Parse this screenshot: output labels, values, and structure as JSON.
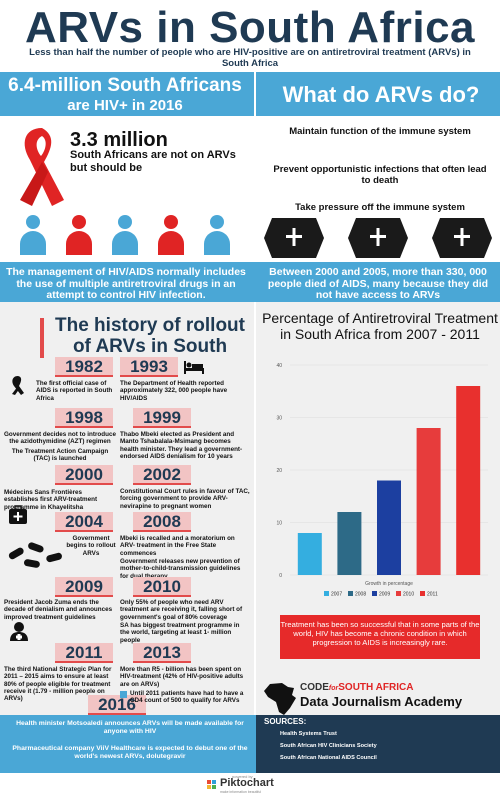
{
  "header": {
    "title": "ARVs in South Africa",
    "subtitle": "Less than half the number of people who are HIV-positive are on antiretroviral treatment (ARVs) in South Africa"
  },
  "banner": {
    "left_line1": "6.4-million South Africans",
    "left_line2": "are HIV+ in 2016",
    "right": "What do ARVs do?"
  },
  "stat": {
    "big": "3.3 million",
    "sub": "South Africans are not on ARVs but should be"
  },
  "arv_does": [
    "Maintain function of the immune system",
    "Prevent opportunistic infections that often lead to death",
    "Take pressure off the immune system"
  ],
  "banner2": {
    "left": "The management of HIV/AIDS normally includes the use of multiple antiretroviral drugs in an attempt to control HIV infection.",
    "right": "Between 2000 and 2005, more than 330, 000 people died of AIDS, many because they did not have access to ARVs"
  },
  "history": {
    "title": "The history of rollout of ARVs in South Africa",
    "entries": [
      {
        "year": "1982",
        "text": "The first official case of AIDS is reported in South Africa"
      },
      {
        "year": "1993",
        "text": "The Department of Health reported approximately 322, 000 people have HIV/AIDS"
      },
      {
        "year": "1998",
        "text": "Government decides not to introduce the azidothymidine (AZT) regimen"
      },
      {
        "year": "1998b",
        "text": "The Treatment Action Campaign (TAC) is launched"
      },
      {
        "year": "1999",
        "text": "Thabo Mbeki elected as President and Manto Tshabalala-Msimang becomes health minister. They lead a government-endorsed AIDS denialism for 10 years"
      },
      {
        "year": "2000",
        "text": "Médecins Sans Frontières establishes first ARV-treatment programme in Khayelitsha"
      },
      {
        "year": "2002",
        "text": "Constitutional Court rules in favour of TAC, forcing government to provide ARV-nevirapine to pregnant women"
      },
      {
        "year": "2004",
        "text": "Government begins to rollout ARVs"
      },
      {
        "year": "2008",
        "text": "Mbeki is recalled and a moratorium on ARV- treatment in the Free State commences"
      },
      {
        "year": "2008b",
        "text": "Government releases new prevention of mother-to-child-transmission guidelines for dual therapy"
      },
      {
        "year": "2009",
        "text": "President Jacob Zuma ends the decade of denialism and announces improved treatment guidelines"
      },
      {
        "year": "2010",
        "text": "Only 55% of people who need ARV treatment are receiving it, falling short of government's goal of 80% coverage"
      },
      {
        "year": "2010b",
        "text": "SA has biggest treatment programme in the world, targeting at least 1- million people"
      },
      {
        "year": "2011",
        "text": "The third National Strategic Plan for 2011 – 2015 aims to ensure at least 80% of people eligible for treatment receive it (1.79 - million people on ARVs)"
      },
      {
        "year": "2013",
        "text": "More than R5 - billion  has been spent on HIV-treatment (42% of HIV-positive adults are on ARVs)"
      },
      {
        "year": "2016",
        "text": "Until 2011 patients have had to have a CD4 count of 500 to qualify for ARVs"
      }
    ],
    "year_labels": [
      "1982",
      "1993",
      "1998",
      "1999",
      "2000",
      "2002",
      "2004",
      "2008",
      "2009",
      "2010",
      "2011",
      "2013",
      "2016"
    ]
  },
  "chart_data": {
    "type": "bar",
    "title": "Percentage of Antiretroviral Treatment in South Africa from 2007 - 2011",
    "xlabel": "Growth in percentage",
    "ylabel": "",
    "categories": [
      "2007",
      "2008",
      "2009",
      "2010",
      "2011"
    ],
    "values": [
      8,
      12,
      18,
      28,
      36
    ],
    "ylim": [
      0,
      40
    ],
    "yticks": [
      "0",
      "10",
      "20",
      "30",
      "40"
    ],
    "colors": [
      "#34aee0",
      "#2d6a87",
      "#1c3fa0",
      "#e73c3c",
      "#e8302e"
    ],
    "legend_position": "bottom"
  },
  "callout": "Treatment has been so successful that in some parts of the world, HIV has become a chronic condition in which progression to AIDS is increasingly rare.",
  "brand": {
    "code_for": "CODE",
    "for_text": "for",
    "south_africa": "SOUTH AFRICA",
    "academy": "Data Journalism Academy"
  },
  "footer_notes": [
    "Health minister Motsoaledi announces ARVs will be made available for anyone with HIV",
    "Pharmaceutical company ViiV Healthcare is expected to debut one of the world's newest ARVs, dolutegravir"
  ],
  "sources": {
    "heading": "SOURCES:",
    "items": [
      "Health Systems Trust",
      "South African HIV Clinicians Society",
      "South African National AIDS Council"
    ]
  },
  "piktochart": {
    "powered": "powered by",
    "name": "Piktochart",
    "tagline": "make information beautiful"
  }
}
